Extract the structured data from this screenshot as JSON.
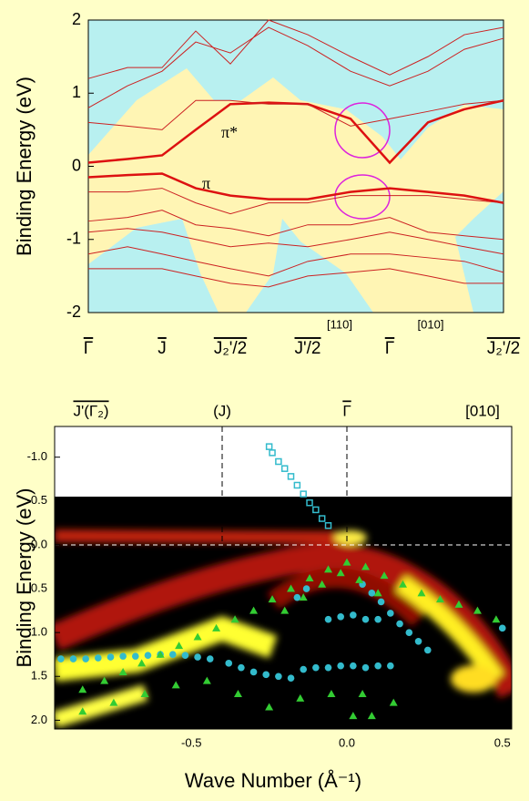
{
  "chart_data": [
    {
      "type": "line",
      "y_label": "Binding Energy (eV)",
      "categories": [
        "Γ",
        null,
        "J",
        null,
        "J₂'/2",
        null,
        "J'/2",
        null,
        "Γ",
        null,
        null,
        "J₂'/2"
      ],
      "ylim": [
        -2,
        2
      ],
      "yticks": [
        -2,
        -1,
        0,
        1,
        2
      ],
      "annotations": [
        "π*",
        "π",
        "[110]",
        "[010]"
      ],
      "series": [
        {
          "color": "#dd1111",
          "bold": true,
          "values": [
            0.05,
            0.1,
            0.15,
            0.5,
            0.85,
            0.87,
            0.85,
            0.65,
            0.05,
            0.6,
            0.78,
            0.9
          ]
        },
        {
          "color": "#dd1111",
          "bold": true,
          "values": [
            -0.15,
            -0.12,
            -0.1,
            -0.3,
            -0.4,
            -0.45,
            -0.45,
            -0.35,
            -0.3,
            -0.35,
            -0.4,
            -0.5
          ]
        },
        {
          "color": "#cc2222",
          "values": [
            1.2,
            1.35,
            1.35,
            1.85,
            1.4,
            2.0,
            1.8,
            1.5,
            1.25,
            1.5,
            1.8,
            1.9
          ]
        },
        {
          "color": "#cc2222",
          "values": [
            0.8,
            1.1,
            1.3,
            1.7,
            1.55,
            1.9,
            1.65,
            1.3,
            1.1,
            1.3,
            1.6,
            1.75
          ]
        },
        {
          "color": "#cc2222",
          "values": [
            0.6,
            0.55,
            0.5,
            0.9,
            0.9,
            0.85,
            0.85,
            0.55,
            0.65,
            0.75,
            0.85,
            0.9
          ]
        },
        {
          "color": "#cc2222",
          "values": [
            -0.35,
            -0.35,
            -0.3,
            -0.5,
            -0.65,
            -0.5,
            -0.5,
            -0.4,
            -0.4,
            -0.4,
            -0.45,
            -0.5
          ]
        },
        {
          "color": "#cc2222",
          "values": [
            -0.75,
            -0.7,
            -0.6,
            -0.8,
            -0.85,
            -0.95,
            -0.8,
            -0.8,
            -0.7,
            -0.9,
            -0.95,
            -1.0
          ]
        },
        {
          "color": "#cc2222",
          "values": [
            -0.9,
            -0.85,
            -0.9,
            -1.0,
            -1.1,
            -1.05,
            -1.1,
            -1.0,
            -0.9,
            -1.0,
            -1.1,
            -1.2
          ]
        },
        {
          "color": "#cc2222",
          "values": [
            -1.2,
            -1.1,
            -1.2,
            -1.3,
            -1.4,
            -1.5,
            -1.3,
            -1.2,
            -1.2,
            -1.25,
            -1.3,
            -1.45
          ]
        },
        {
          "color": "#cc2222",
          "values": [
            -1.4,
            -1.4,
            -1.4,
            -1.5,
            -1.6,
            -1.65,
            -1.5,
            -1.45,
            -1.4,
            -1.5,
            -1.6,
            -1.6
          ]
        }
      ]
    },
    {
      "type": "scatter",
      "x_label": "Wave Number (Å⁻¹)",
      "y_label": "Binding Energy (eV)",
      "annotations": [
        "J'(Γ₂)",
        "(J)",
        "Γ",
        "[010]"
      ],
      "xlim": [
        -0.94,
        0.53
      ],
      "xticks": [
        -0.5,
        {
          "value": 0,
          "label": "0.0"
        },
        0.5
      ],
      "ylim": [
        2.1,
        -1.35
      ],
      "yticks": [
        {
          "value": -1,
          "label": "-1.0"
        },
        -0.5,
        {
          "value": 0,
          "label": "0.0"
        },
        0.5,
        {
          "value": 1,
          "label": "1.0"
        },
        1.5,
        {
          "value": 2,
          "label": "2.0"
        }
      ],
      "series": [
        {
          "color": "#33bbcc",
          "marker": "square",
          "x": [
            -0.25,
            -0.24,
            -0.22,
            -0.2,
            -0.18,
            -0.16,
            -0.14,
            -0.12,
            -0.1,
            -0.08,
            -0.06
          ],
          "values": [
            -1.12,
            -1.05,
            -0.95,
            -0.87,
            -0.78,
            -0.68,
            -0.58,
            -0.48,
            -0.4,
            -0.3,
            -0.22
          ]
        },
        {
          "color": "#33bbcc",
          "marker": "circle",
          "x": [
            -0.92,
            -0.88,
            -0.84,
            -0.8,
            -0.76,
            -0.72,
            -0.68,
            -0.64,
            -0.6,
            -0.56,
            -0.52,
            -0.48,
            -0.44,
            -0.38,
            -0.34,
            -0.3,
            -0.26,
            -0.22,
            -0.18,
            -0.14,
            -0.1,
            -0.06,
            -0.02,
            0.02,
            0.06,
            0.1,
            0.14,
            -0.06,
            -0.02,
            0.02,
            0.06,
            0.1,
            0.05,
            0.08,
            0.11,
            0.14,
            0.17,
            0.2,
            0.23,
            0.26,
            0.5,
            -0.16,
            -0.13
          ],
          "values": [
            1.3,
            1.3,
            1.3,
            1.29,
            1.28,
            1.27,
            1.27,
            1.26,
            1.25,
            1.25,
            1.26,
            1.28,
            1.3,
            1.35,
            1.4,
            1.45,
            1.48,
            1.5,
            1.52,
            1.42,
            1.4,
            1.4,
            1.38,
            1.38,
            1.4,
            1.38,
            1.38,
            0.85,
            0.82,
            0.8,
            0.85,
            0.85,
            0.45,
            0.55,
            0.65,
            0.78,
            0.9,
            1.0,
            1.1,
            1.2,
            0.95,
            0.6,
            0.5
          ]
        },
        {
          "color": "#33cc33",
          "marker": "triangle",
          "x": [
            -0.85,
            -0.78,
            -0.72,
            -0.66,
            -0.6,
            -0.54,
            -0.48,
            -0.42,
            -0.36,
            -0.3,
            -0.24,
            -0.18,
            -0.12,
            -0.06,
            0,
            0.06,
            0.12,
            0.18,
            0.24,
            0.3,
            0.36,
            0.42,
            0.48,
            -0.2,
            -0.14,
            -0.08,
            -0.02,
            0.04,
            0.1,
            -0.85,
            -0.75,
            -0.65,
            -0.55,
            -0.45,
            -0.35,
            -0.25,
            -0.15,
            -0.05,
            0.05,
            0.15,
            0.02,
            0.08
          ],
          "values": [
            1.65,
            1.55,
            1.45,
            1.35,
            1.25,
            1.15,
            1.05,
            0.95,
            0.85,
            0.75,
            0.62,
            0.5,
            0.38,
            0.28,
            0.2,
            0.25,
            0.35,
            0.45,
            0.55,
            0.62,
            0.68,
            0.75,
            0.85,
            0.75,
            0.6,
            0.45,
            0.32,
            0.4,
            0.55,
            1.9,
            1.8,
            1.7,
            1.6,
            1.55,
            1.7,
            1.85,
            1.75,
            1.7,
            1.7,
            1.8,
            1.95,
            1.95
          ]
        }
      ]
    }
  ]
}
